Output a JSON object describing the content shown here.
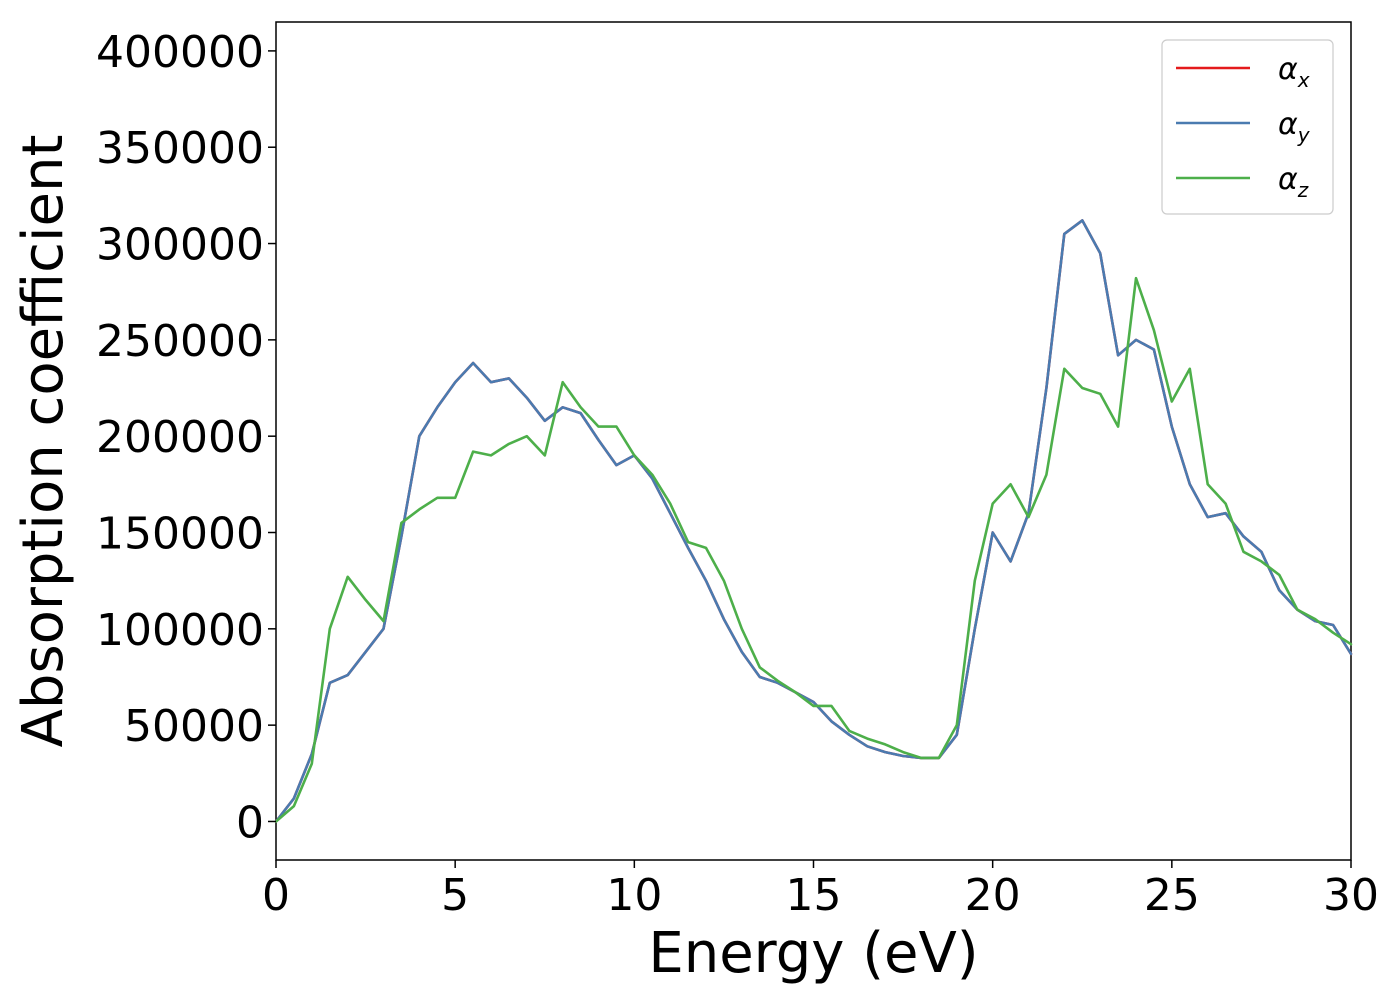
{
  "chart_data": {
    "type": "line",
    "title": "",
    "xlabel": "Energy (eV)",
    "ylabel": "Absorption coefficient",
    "xlim": [
      0,
      30
    ],
    "ylim": [
      -20000,
      415000
    ],
    "x_ticks": [
      0,
      5,
      10,
      15,
      20,
      25,
      30
    ],
    "y_ticks": [
      0,
      50000,
      100000,
      150000,
      200000,
      250000,
      300000,
      350000,
      400000
    ],
    "x_tick_labels": [
      "0",
      "5",
      "10",
      "15",
      "20",
      "25",
      "30"
    ],
    "y_tick_labels": [
      "0",
      "50000",
      "100000",
      "150000",
      "200000",
      "250000",
      "300000",
      "350000",
      "400000"
    ],
    "grid": false,
    "legend_position": "top-right",
    "series": [
      {
        "name": "α_x",
        "label_base": "α",
        "label_sub": "x",
        "color": "#e41a1c",
        "x": [
          0,
          0.5,
          1,
          1.5,
          2,
          2.5,
          3,
          3.5,
          4,
          4.5,
          5,
          5.5,
          6,
          6.5,
          7,
          7.5,
          8,
          8.5,
          9,
          9.5,
          10,
          10.5,
          11,
          11.5,
          12,
          12.5,
          13,
          13.5,
          14,
          14.5,
          15,
          15.5,
          16,
          16.5,
          17,
          17.5,
          18,
          18.5,
          19,
          19.5,
          20,
          20.5,
          21,
          21.5,
          22,
          22.5,
          23,
          23.5,
          24,
          24.5,
          25,
          25.5,
          26,
          26.5,
          27,
          27.5,
          28,
          28.5,
          29,
          29.5,
          30
        ],
        "y": [
          0,
          12000,
          35000,
          72000,
          76000,
          88000,
          100000,
          148000,
          200000,
          215000,
          228000,
          238000,
          228000,
          230000,
          220000,
          208000,
          215000,
          212000,
          198000,
          185000,
          190000,
          178000,
          160000,
          142000,
          125000,
          105000,
          88000,
          75000,
          72000,
          67000,
          62000,
          52000,
          45000,
          39000,
          36000,
          34000,
          33000,
          33000,
          45000,
          100000,
          150000,
          135000,
          160000,
          225000,
          305000,
          312000,
          295000,
          242000,
          250000,
          245000,
          205000,
          175000,
          158000,
          160000,
          148000,
          140000,
          120000,
          110000,
          104000,
          102000,
          87000
        ]
      },
      {
        "name": "α_y",
        "label_base": "α",
        "label_sub": "y",
        "color": "#4a7bb0",
        "x": [
          0,
          0.5,
          1,
          1.5,
          2,
          2.5,
          3,
          3.5,
          4,
          4.5,
          5,
          5.5,
          6,
          6.5,
          7,
          7.5,
          8,
          8.5,
          9,
          9.5,
          10,
          10.5,
          11,
          11.5,
          12,
          12.5,
          13,
          13.5,
          14,
          14.5,
          15,
          15.5,
          16,
          16.5,
          17,
          17.5,
          18,
          18.5,
          19,
          19.5,
          20,
          20.5,
          21,
          21.5,
          22,
          22.5,
          23,
          23.5,
          24,
          24.5,
          25,
          25.5,
          26,
          26.5,
          27,
          27.5,
          28,
          28.5,
          29,
          29.5,
          30
        ],
        "y": [
          0,
          12000,
          35000,
          72000,
          76000,
          88000,
          100000,
          148000,
          200000,
          215000,
          228000,
          238000,
          228000,
          230000,
          220000,
          208000,
          215000,
          212000,
          198000,
          185000,
          190000,
          178000,
          160000,
          142000,
          125000,
          105000,
          88000,
          75000,
          72000,
          67000,
          62000,
          52000,
          45000,
          39000,
          36000,
          34000,
          33000,
          33000,
          45000,
          100000,
          150000,
          135000,
          160000,
          225000,
          305000,
          312000,
          295000,
          242000,
          250000,
          245000,
          205000,
          175000,
          158000,
          160000,
          148000,
          140000,
          120000,
          110000,
          104000,
          102000,
          87000
        ]
      },
      {
        "name": "α_z",
        "label_base": "α",
        "label_sub": "z",
        "color": "#4daf4a",
        "x": [
          0,
          0.5,
          1,
          1.5,
          2,
          2.5,
          3,
          3.5,
          4,
          4.5,
          5,
          5.5,
          6,
          6.5,
          7,
          7.5,
          8,
          8.5,
          9,
          9.5,
          10,
          10.5,
          11,
          11.5,
          12,
          12.5,
          13,
          13.5,
          14,
          14.5,
          15,
          15.5,
          16,
          16.5,
          17,
          17.5,
          18,
          18.5,
          19,
          19.5,
          20,
          20.5,
          21,
          21.5,
          22,
          22.5,
          23,
          23.5,
          24,
          24.5,
          25,
          25.5,
          26,
          26.5,
          27,
          27.5,
          28,
          28.5,
          29,
          29.5,
          30
        ],
        "y": [
          0,
          8000,
          30000,
          100000,
          127000,
          115000,
          104000,
          155000,
          162000,
          168000,
          168000,
          192000,
          190000,
          196000,
          200000,
          190000,
          228000,
          215000,
          205000,
          205000,
          190000,
          180000,
          165000,
          145000,
          142000,
          125000,
          100000,
          80000,
          73000,
          67000,
          60000,
          60000,
          47000,
          43000,
          40000,
          36000,
          33000,
          33000,
          50000,
          125000,
          165000,
          175000,
          158000,
          180000,
          235000,
          225000,
          222000,
          205000,
          282000,
          255000,
          218000,
          235000,
          175000,
          165000,
          140000,
          135000,
          128000,
          110000,
          105000,
          98000,
          92000
        ]
      }
    ]
  }
}
